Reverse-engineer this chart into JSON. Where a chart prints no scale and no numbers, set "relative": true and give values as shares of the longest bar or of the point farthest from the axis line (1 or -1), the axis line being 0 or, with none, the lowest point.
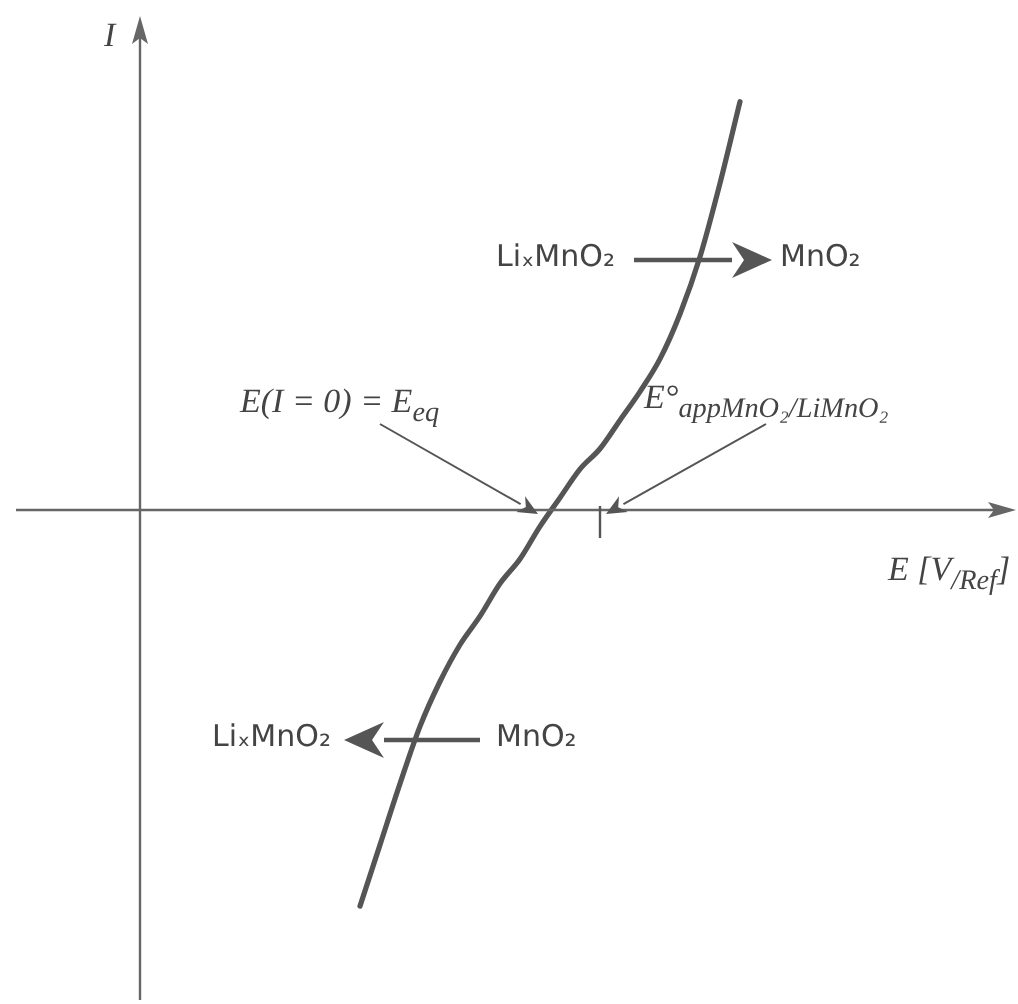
{
  "chart_data": {
    "type": "line",
    "relative": true,
    "xlabel": "E [V$_{/Ref}$]",
    "ylabel": "I",
    "categories": [
      null,
      null,
      null,
      null,
      null,
      null,
      null,
      null,
      null,
      null,
      null,
      null,
      null,
      null,
      null,
      null,
      null,
      null,
      null,
      null,
      null,
      null,
      null,
      null,
      null,
      null,
      null,
      null,
      null,
      null,
      null,
      null,
      null,
      null,
      null,
      null,
      null,
      null,
      null,
      null,
      null,
      null,
      null,
      null
    ],
    "series": [
      {
        "color": "#555555",
        "values": [
          null,
          null,
          null,
          null,
          null,
          null,
          null,
          null,
          null,
          null,
          null,
          -0.97,
          -0.82,
          -0.67,
          -0.53,
          -0.42,
          -0.33,
          -0.26,
          -0.18,
          -0.12,
          -0.04,
          0.03,
          0.1,
          0.15,
          0.22,
          0.29,
          0.37,
          0.48,
          0.62,
          0.8,
          1.0,
          null,
          null,
          null,
          null,
          null,
          null,
          null,
          null,
          null,
          null,
          null,
          null,
          null
        ]
      }
    ],
    "annotations": [
      "E(I = 0) = E$_{eq}$",
      "E°$_{app}$$_{MnO₂/LiMnO₂}$",
      "LiₓMnO₂",
      "MnO₂",
      "LiₓMnO₂",
      "MnO₂"
    ],
    "grid": false,
    "legend": false,
    "marker": "none",
    "line_style": "solid"
  }
}
